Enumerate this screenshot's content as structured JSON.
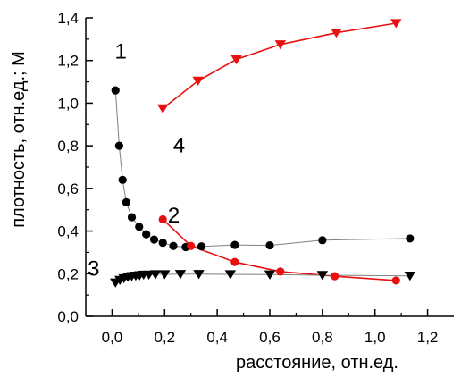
{
  "chart_data": {
    "type": "scatter",
    "xlabel": "расстояние, отн.ед.",
    "ylabel": "плотность, отн.ед.; М",
    "xlim": [
      -0.1,
      1.3
    ],
    "ylim": [
      0.0,
      1.4
    ],
    "x_ticks": [
      "0,0",
      "0,2",
      "0,4",
      "0,6",
      "0,8",
      "1,0",
      "1,2"
    ],
    "x_tick_values": [
      0.0,
      0.2,
      0.4,
      0.6,
      0.8,
      1.0,
      1.2
    ],
    "y_ticks": [
      "0,0",
      "0,2",
      "0,4",
      "0,6",
      "0,8",
      "1,0",
      "1,2",
      "1,4"
    ],
    "y_tick_values": [
      0.0,
      0.2,
      0.4,
      0.6,
      0.8,
      1.0,
      1.2,
      1.4
    ],
    "grid": false,
    "legend": "none",
    "series": [
      {
        "name": "1",
        "color": "#000000",
        "line_color": "#808080",
        "marker": "circle",
        "x": [
          0.013,
          0.027,
          0.04,
          0.054,
          0.075,
          0.103,
          0.13,
          0.16,
          0.193,
          0.233,
          0.28,
          0.34,
          0.467,
          0.6,
          0.8,
          1.133
        ],
        "y": [
          1.06,
          0.8,
          0.64,
          0.535,
          0.465,
          0.42,
          0.385,
          0.36,
          0.345,
          0.33,
          0.325,
          0.328,
          0.335,
          0.333,
          0.357,
          0.365
        ]
      },
      {
        "name": "2",
        "color": "#e81010",
        "line_color": "#e81010",
        "marker": "circle",
        "x": [
          0.193,
          0.3,
          0.467,
          0.64,
          0.847,
          1.08
        ],
        "y": [
          0.455,
          0.33,
          0.255,
          0.21,
          0.188,
          0.168
        ]
      },
      {
        "name": "3",
        "color": "#000000",
        "line_color": "#808080",
        "marker": "triangle-down",
        "x": [
          0.013,
          0.03,
          0.045,
          0.06,
          0.075,
          0.09,
          0.105,
          0.12,
          0.14,
          0.165,
          0.2,
          0.26,
          0.33,
          0.45,
          0.6,
          0.8,
          1.133
        ],
        "y": [
          0.158,
          0.17,
          0.178,
          0.185,
          0.188,
          0.19,
          0.192,
          0.195,
          0.195,
          0.197,
          0.197,
          0.198,
          0.198,
          0.197,
          0.196,
          0.193,
          0.19
        ]
      },
      {
        "name": "4",
        "color": "#e81010",
        "line_color": "#e81010",
        "marker": "triangle-down",
        "x": [
          0.193,
          0.327,
          0.473,
          0.64,
          0.853,
          1.08
        ],
        "y": [
          0.975,
          1.105,
          1.205,
          1.275,
          1.33,
          1.375
        ]
      }
    ]
  }
}
